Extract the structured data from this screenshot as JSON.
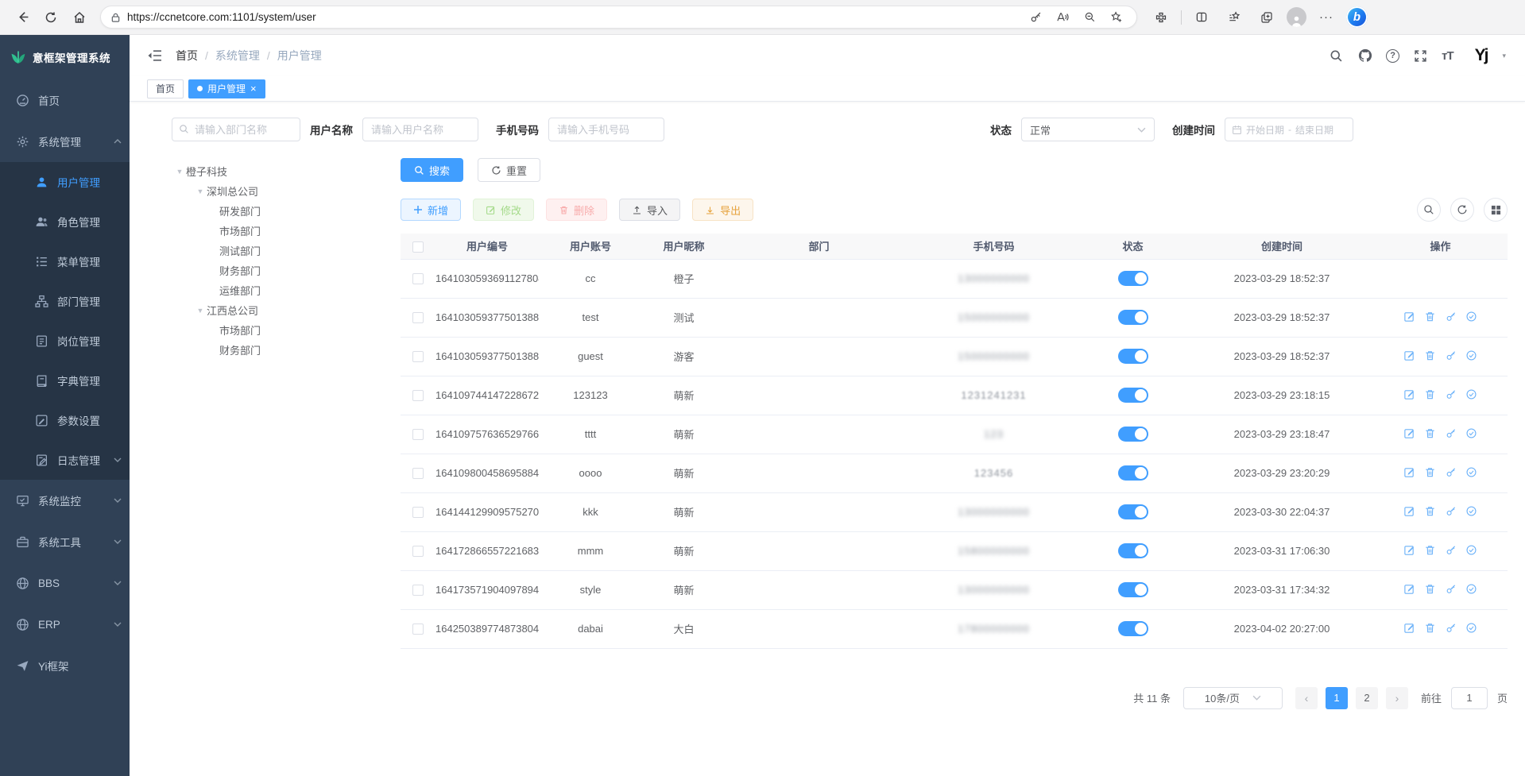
{
  "browser": {
    "url": "https://ccnetcore.com:1101/system/user",
    "nav_icons": [
      "back-icon",
      "refresh-icon",
      "home-icon",
      "lock-icon"
    ],
    "action_icons": [
      "password-key-icon",
      "read-aloud-icon",
      "zoom-icon",
      "favorites-add-icon",
      "extensions-icon",
      "split-screen-icon",
      "collections-icon",
      "tab-copy-icon",
      "profile-avatar-icon",
      "more-menu-icon",
      "bing-chat-icon"
    ],
    "bing_glyph": "b"
  },
  "app": {
    "title": "意框架管理系统"
  },
  "sidebar": {
    "items": [
      {
        "label": "首页",
        "icon": "dashboard-icon"
      },
      {
        "label": "系统管理",
        "icon": "gear-icon",
        "has_arrow": true,
        "expanded": true
      },
      {
        "label": "用户管理",
        "icon": "user-icon",
        "child": true,
        "active": true
      },
      {
        "label": "角色管理",
        "icon": "role-icon",
        "child": true
      },
      {
        "label": "菜单管理",
        "icon": "menu-list-icon",
        "child": true
      },
      {
        "label": "部门管理",
        "icon": "org-tree-icon",
        "child": true
      },
      {
        "label": "岗位管理",
        "icon": "post-icon",
        "child": true
      },
      {
        "label": "字典管理",
        "icon": "dict-icon",
        "child": true
      },
      {
        "label": "参数设置",
        "icon": "param-icon",
        "child": true
      },
      {
        "label": "日志管理",
        "icon": "log-icon",
        "child": true,
        "has_arrow": true
      },
      {
        "label": "系统监控",
        "icon": "monitor-icon",
        "has_arrow": true
      },
      {
        "label": "系统工具",
        "icon": "tools-icon",
        "has_arrow": true
      },
      {
        "label": "BBS",
        "icon": "globe-icon",
        "has_arrow": true
      },
      {
        "label": "ERP",
        "icon": "globe-icon",
        "has_arrow": true
      },
      {
        "label": "Yi框架",
        "icon": "plane-icon"
      }
    ]
  },
  "topbar": {
    "breadcrumb": {
      "separator": "/",
      "items": [
        "首页",
        "系统管理",
        "用户管理"
      ]
    },
    "action_icons": [
      "search-icon",
      "github-icon",
      "help-icon",
      "fullscreen-icon",
      "font-size-icon",
      "yi-avatar-logo",
      "chevron-down-icon"
    ],
    "font_size_glyph": "тT",
    "help_glyph": "?",
    "avatar_glyph": "Yj",
    "caret_glyph": "▾"
  },
  "tags": [
    {
      "label": "首页"
    },
    {
      "label": "用户管理",
      "active": true,
      "close": "×"
    }
  ],
  "filters": {
    "dept_placeholder": "请输入部门名称",
    "username_label": "用户名称",
    "username_placeholder": "请输入用户名称",
    "phone_label": "手机号码",
    "phone_placeholder": "请输入手机号码",
    "status_label": "状态",
    "status_value": "正常",
    "created_label": "创建时间",
    "date_start": "开始日期",
    "date_separator": "-",
    "date_end": "结束日期"
  },
  "actions": {
    "search": "搜索",
    "reset": "重置",
    "add": "新增",
    "edit": "修改",
    "delete": "删除",
    "import": "导入",
    "export": "导出"
  },
  "tree": {
    "nodes": [
      {
        "label": "橙子科技",
        "depth": "d0",
        "expandable": true,
        "caret": "▼"
      },
      {
        "label": "深圳总公司",
        "depth": "d1",
        "expandable": true,
        "caret": "▼"
      },
      {
        "label": "研发部门",
        "depth": "d2"
      },
      {
        "label": "市场部门",
        "depth": "d2"
      },
      {
        "label": "测试部门",
        "depth": "d2"
      },
      {
        "label": "财务部门",
        "depth": "d2"
      },
      {
        "label": "运维部门",
        "depth": "d2"
      },
      {
        "label": "江西总公司",
        "depth": "d1",
        "expandable": true,
        "caret": "▼"
      },
      {
        "label": "市场部门",
        "depth": "d2"
      },
      {
        "label": "财务部门",
        "depth": "d2"
      }
    ]
  },
  "table": {
    "headers": [
      "用户编号",
      "用户账号",
      "用户昵称",
      "部门",
      "手机号码",
      "状态",
      "创建时间",
      "操作"
    ],
    "toolbar_icons": [
      "search-icon",
      "refresh-icon",
      "grid-icon"
    ],
    "row_action_icons": [
      "edit-icon",
      "delete-icon",
      "reset-password-icon",
      "approve-icon"
    ],
    "rows": [
      {
        "id": "1641030593691127808",
        "account": "cc",
        "nickname": "橙子",
        "dept": "",
        "phone": "13000000000",
        "status_on": true,
        "created": "2023-03-29 18:52:37",
        "has_actions": false
      },
      {
        "id": "1641030593775013888",
        "account": "test",
        "nickname": "测试",
        "dept": "",
        "phone": "15000000000",
        "status_on": true,
        "created": "2023-03-29 18:52:37",
        "has_actions": true
      },
      {
        "id": "1641030593775013889",
        "account": "guest",
        "nickname": "游客",
        "dept": "",
        "phone": "15000000000",
        "status_on": true,
        "created": "2023-03-29 18:52:37",
        "has_actions": true
      },
      {
        "id": "1641097441472286720",
        "account": "123123",
        "nickname": "萌新",
        "dept": "",
        "phone": "1231241231",
        "status_on": true,
        "created": "2023-03-29 23:18:15",
        "has_actions": true,
        "phone_light": true
      },
      {
        "id": "1641097576365297664",
        "account": "tttt",
        "nickname": "萌新",
        "dept": "",
        "phone": "123",
        "status_on": true,
        "created": "2023-03-29 23:18:47",
        "has_actions": true
      },
      {
        "id": "1641098004586958848",
        "account": "oooo",
        "nickname": "萌新",
        "dept": "",
        "phone": "123456",
        "status_on": true,
        "created": "2023-03-29 23:20:29",
        "has_actions": true,
        "phone_light": true
      },
      {
        "id": "1641441299095752704",
        "account": "kkk",
        "nickname": "萌新",
        "dept": "",
        "phone": "13000000000",
        "status_on": true,
        "created": "2023-03-30 22:04:37",
        "has_actions": true
      },
      {
        "id": "1641728665572216832",
        "account": "mmm",
        "nickname": "萌新",
        "dept": "",
        "phone": "15800000000",
        "status_on": true,
        "created": "2023-03-31 17:06:30",
        "has_actions": true
      },
      {
        "id": "1641735719040978944",
        "account": "style",
        "nickname": "萌新",
        "dept": "",
        "phone": "13000000000",
        "status_on": true,
        "created": "2023-03-31 17:34:32",
        "has_actions": true
      },
      {
        "id": "1642503897748738048",
        "account": "dabai",
        "nickname": "大白",
        "dept": "",
        "phone": "17800000000",
        "status_on": true,
        "created": "2023-04-02 20:27:00",
        "has_actions": true
      }
    ]
  },
  "pagination": {
    "total": "共 11 条",
    "page_size": "10条/页",
    "prev": "‹",
    "next": "›",
    "pages": [
      {
        "label": "1",
        "active": true
      },
      {
        "label": "2"
      }
    ],
    "goto_label": "前往",
    "goto_value": "1",
    "page_unit": "页"
  }
}
